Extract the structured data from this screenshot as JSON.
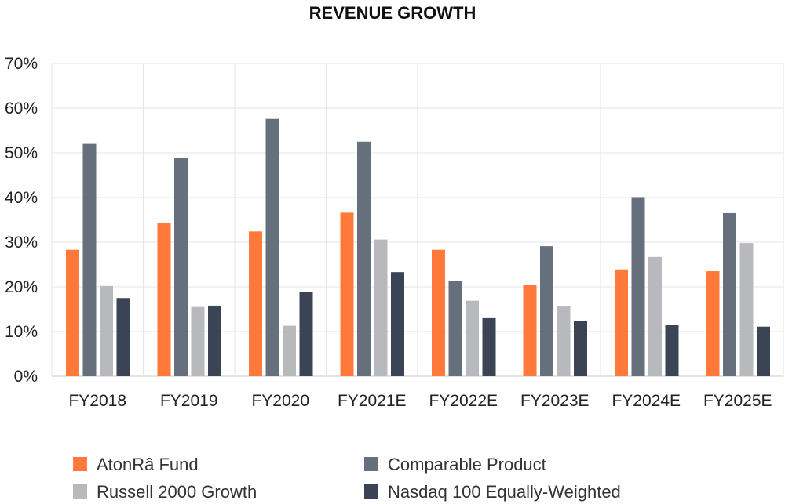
{
  "chart_data": {
    "type": "bar",
    "title": "REVENUE GROWTH",
    "xlabel": "",
    "ylabel": "",
    "ylim": [
      0,
      70
    ],
    "y_ticks": [
      0,
      10,
      20,
      30,
      40,
      50,
      60,
      70
    ],
    "y_tick_labels": [
      "0%",
      "10%",
      "20%",
      "30%",
      "40%",
      "50%",
      "60%",
      "70%"
    ],
    "grid": true,
    "legend_position": "bottom",
    "categories": [
      "FY2018",
      "FY2019",
      "FY2020",
      "FY2021E",
      "FY2022E",
      "FY2023E",
      "FY2024E",
      "FY2025E"
    ],
    "series": [
      {
        "name": "AtonRâ Fund",
        "color": "#ff7a3a",
        "values": [
          28.3,
          34.3,
          32.4,
          36.6,
          28.3,
          20.4,
          23.9,
          23.5
        ]
      },
      {
        "name": "Comparable Product",
        "color": "#66707c",
        "values": [
          52.0,
          48.9,
          57.6,
          52.5,
          21.4,
          29.1,
          40.1,
          36.5
        ]
      },
      {
        "name": "Russell 2000 Growth",
        "color": "#b7b9bd",
        "values": [
          20.2,
          15.5,
          11.3,
          30.6,
          16.9,
          15.6,
          26.7,
          29.8
        ]
      },
      {
        "name": "Nasdaq 100 Equally-Weighted",
        "color": "#3b4455",
        "values": [
          17.5,
          15.8,
          18.8,
          23.3,
          13.0,
          12.3,
          11.5,
          11.1
        ]
      }
    ]
  }
}
